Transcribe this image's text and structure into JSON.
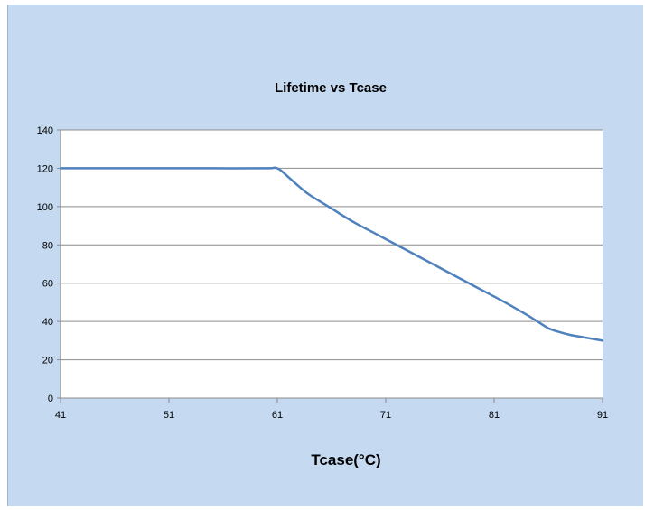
{
  "chart_data": {
    "type": "line",
    "title": "Lifetime vs Tcase",
    "xlabel": "Tcase(°C)",
    "ylabel": "",
    "xlim": [
      41,
      91
    ],
    "ylim": [
      0,
      140
    ],
    "xticks": [
      41,
      51,
      61,
      71,
      81,
      91
    ],
    "yticks": [
      0,
      20,
      40,
      60,
      80,
      100,
      120,
      140
    ],
    "grid": {
      "horizontal": true,
      "vertical": false
    },
    "legend": "none",
    "series": [
      {
        "color": "#4f81bd",
        "x": [
          41,
          45,
          50,
          55,
          60,
          60.8,
          61.3,
          62,
          63,
          64,
          66,
          68,
          70,
          72,
          74,
          76,
          78,
          80,
          82,
          84,
          85,
          86,
          87,
          88,
          89,
          90,
          91
        ],
        "y": [
          120,
          120,
          120,
          120,
          120,
          120.3,
          119,
          115.5,
          110.5,
          106,
          99,
          92,
          86,
          80,
          74,
          68,
          62,
          56,
          50,
          43.5,
          40,
          36.5,
          34.5,
          33,
          32,
          31,
          30
        ]
      }
    ]
  }
}
